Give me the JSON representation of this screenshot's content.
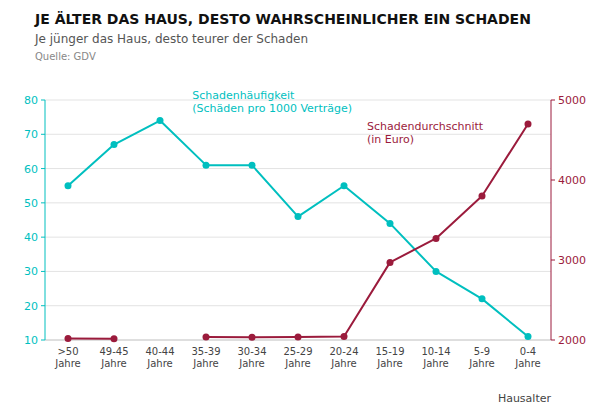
{
  "chart_data": {
    "type": "line",
    "title": "JE ÄLTER DAS HAUS, DESTO WAHRSCHEINLICHER EIN SCHADEN",
    "subtitle": "Je jünger das Haus, desto teurer der Schaden",
    "source": "Quelle: GDV",
    "xlabel": "Hausalter",
    "categories": [
      ">50\nJahre",
      "49-45\nJahre",
      "40-44\nJahre",
      "35-39\nJahre",
      "30-34\nJahre",
      "25-29\nJahre",
      "20-24\nJahre",
      "15-19\nJahre",
      "10-14\nJahre",
      "5-9\nJahre",
      "0-4\nJahre"
    ],
    "series": [
      {
        "name": "Schadenhäufigkeit\n(Schäden pro 1000 Verträge)",
        "color": "#00BFBF",
        "marker": "circle",
        "values": [
          55,
          67,
          74,
          61,
          61,
          46,
          55,
          44,
          30,
          22,
          11
        ]
      },
      {
        "name": "Schadendurchschnitt\n(in Euro)",
        "color": "#9B1B3C",
        "marker": "circle",
        "axis": "y2",
        "values": [
          2020,
          2015,
          null,
          2036,
          2035,
          2036,
          2043,
          2970,
          3270,
          3800,
          4700
        ]
      }
    ],
    "ylim": [
      10,
      80
    ],
    "yticks": [
      10,
      20,
      30,
      40,
      50,
      60,
      70,
      80
    ],
    "y2lim": [
      2000,
      5000
    ],
    "y2ticks": [
      2000,
      3000,
      4000,
      5000
    ],
    "grid": true
  }
}
